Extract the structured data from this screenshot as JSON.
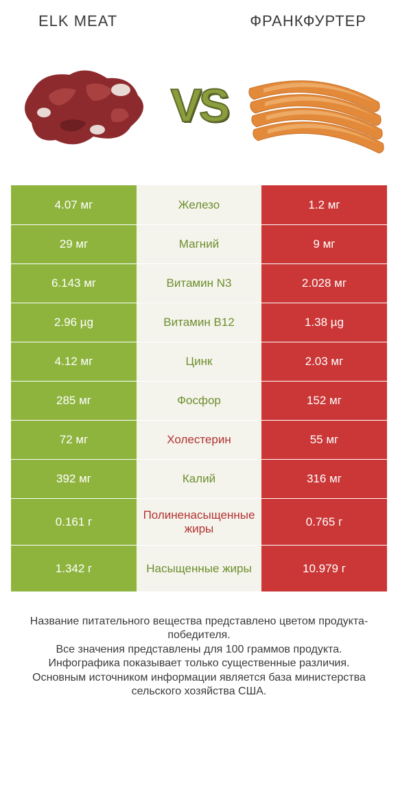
{
  "header": {
    "left_title": "ELK MEAT",
    "right_title": "ФРАНКФУРТЕР",
    "vs_label": "VS"
  },
  "colors": {
    "left_bg": "#8eb43e",
    "right_bg": "#cb3737",
    "mid_bg": "#f4f4ec",
    "left_text": "#ffffff",
    "right_text": "#ffffff",
    "winner_green_text": "#6d8e2e",
    "winner_red_text": "#b33232",
    "page_bg": "#ffffff",
    "title_color": "#3a3a3a",
    "vs_fill": "#8b9e3d",
    "vs_stroke": "#5e6a29"
  },
  "legend": {
    "meat_blob_color": "#8d2a2e",
    "meat_fat_color": "#e8d9d4",
    "sausage_color": "#e38a3a",
    "sausage_highlight": "#f0b878"
  },
  "rows": [
    {
      "left": "4.07 мг",
      "label": "Железо",
      "right": "1.2 мг",
      "winner": "left",
      "tall": false
    },
    {
      "left": "29 мг",
      "label": "Магний",
      "right": "9 мг",
      "winner": "left",
      "tall": false
    },
    {
      "left": "6.143 мг",
      "label": "Витамин N3",
      "right": "2.028 мг",
      "winner": "left",
      "tall": false
    },
    {
      "left": "2.96 µg",
      "label": "Витамин B12",
      "right": "1.38 µg",
      "winner": "left",
      "tall": false
    },
    {
      "left": "4.12 мг",
      "label": "Цинк",
      "right": "2.03 мг",
      "winner": "left",
      "tall": false
    },
    {
      "left": "285 мг",
      "label": "Фосфор",
      "right": "152 мг",
      "winner": "left",
      "tall": false
    },
    {
      "left": "72 мг",
      "label": "Холестерин",
      "right": "55 мг",
      "winner": "right",
      "tall": false
    },
    {
      "left": "392 мг",
      "label": "Калий",
      "right": "316 мг",
      "winner": "left",
      "tall": false
    },
    {
      "left": "0.161 г",
      "label": "Полиненасыщенные жиры",
      "right": "0.765 г",
      "winner": "right",
      "tall": true
    },
    {
      "left": "1.342 г",
      "label": "Насыщенные жиры",
      "right": "10.979 г",
      "winner": "left",
      "tall": true
    }
  ],
  "footer_lines": [
    "Название питательного вещества представлено цветом продукта-победителя.",
    "Все значения представлены для 100 граммов продукта.",
    "Инфографика показывает только существенные различия.",
    "Основным источником информации является база министерства сельского хозяйства США."
  ]
}
